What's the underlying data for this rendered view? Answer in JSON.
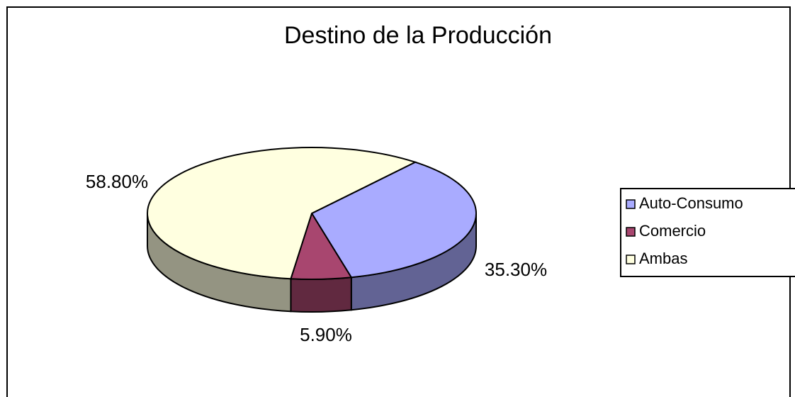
{
  "chart_data": {
    "type": "pie3d",
    "title": "Destino de la  Producción",
    "categories": [
      "Auto-Consumo",
      "Comercio",
      "Ambas"
    ],
    "values": [
      35.3,
      5.9,
      58.8
    ],
    "value_labels": [
      "35.30%",
      "5.90%",
      "58.80%"
    ],
    "colors": [
      "#a9abff",
      "#a8466f",
      "#ffffe0"
    ],
    "legend": "right"
  }
}
